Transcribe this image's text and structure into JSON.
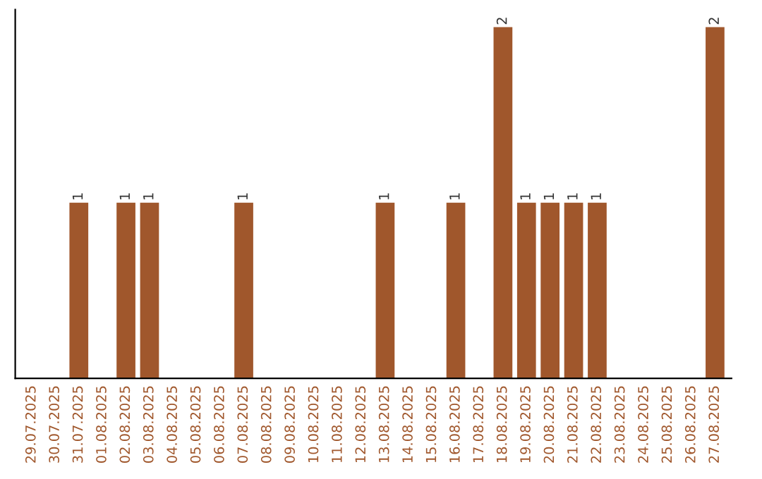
{
  "chart_data": {
    "type": "bar",
    "categories": [
      "29.07.2025",
      "30.07.2025",
      "31.07.2025",
      "01.08.2025",
      "02.08.2025",
      "03.08.2025",
      "04.08.2025",
      "05.08.2025",
      "06.08.2025",
      "07.08.2025",
      "08.08.2025",
      "09.08.2025",
      "10.08.2025",
      "11.08.2025",
      "12.08.2025",
      "13.08.2025",
      "14.08.2025",
      "15.08.2025",
      "16.08.2025",
      "17.08.2025",
      "18.08.2025",
      "19.08.2025",
      "20.08.2025",
      "21.08.2025",
      "22.08.2025",
      "23.08.2025",
      "24.08.2025",
      "25.08.2025",
      "26.08.2025",
      "27.08.2025"
    ],
    "values": [
      0,
      0,
      1,
      0,
      1,
      1,
      0,
      0,
      0,
      1,
      0,
      0,
      0,
      0,
      0,
      1,
      0,
      0,
      1,
      0,
      2,
      1,
      1,
      1,
      1,
      0,
      0,
      0,
      0,
      2
    ],
    "value_labels": [
      null,
      null,
      "1",
      null,
      "1",
      "1",
      null,
      null,
      null,
      "1",
      null,
      null,
      null,
      null,
      null,
      "1",
      null,
      null,
      "1",
      null,
      "2",
      "1",
      "1",
      "1",
      "1",
      null,
      null,
      null,
      null,
      "2"
    ],
    "color": "#a0572c",
    "ylim": [
      0,
      2.1
    ],
    "tick_labels": "x",
    "grid": false,
    "legend": false
  }
}
